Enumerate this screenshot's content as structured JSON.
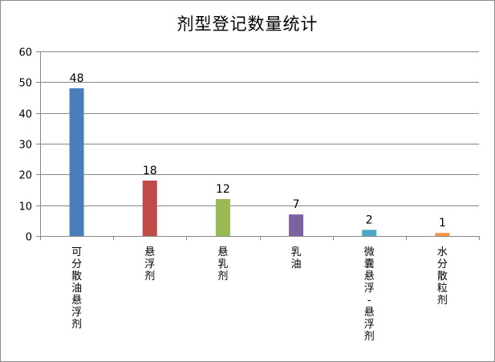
{
  "chart_data": {
    "type": "bar",
    "title": "剂型登记数量统计",
    "categories": [
      "可分散油悬浮剂",
      "悬浮剂",
      "悬乳剂",
      "乳油",
      "微囊悬浮-悬浮剂",
      "水分散粒剂"
    ],
    "category_label_lines": [
      [
        "可",
        "分",
        "散",
        "油",
        "悬",
        "浮",
        "剂"
      ],
      [
        "悬",
        "浮",
        "剂"
      ],
      [
        "悬",
        "乳",
        "剂"
      ],
      [
        "乳",
        "油"
      ],
      [
        "微",
        "囊",
        "悬",
        "浮",
        "-",
        "悬",
        "浮",
        "剂"
      ],
      [
        "水",
        "分",
        "散",
        "粒",
        "剂"
      ]
    ],
    "values": [
      48,
      18,
      12,
      7,
      2,
      1
    ],
    "value_labels": [
      "48",
      "18",
      "12",
      "7",
      "2",
      "1"
    ],
    "colors": [
      "#4a7ebb",
      "#be4b48",
      "#98b954",
      "#7d60a0",
      "#46aac5",
      "#f79646"
    ],
    "ylim": [
      0,
      60
    ],
    "yticks": [
      0,
      10,
      20,
      30,
      40,
      50,
      60
    ],
    "ytick_labels": [
      "0",
      "10",
      "20",
      "30",
      "40",
      "50",
      "60"
    ],
    "grid": true,
    "legend": "none",
    "xlabel": "",
    "ylabel": ""
  }
}
